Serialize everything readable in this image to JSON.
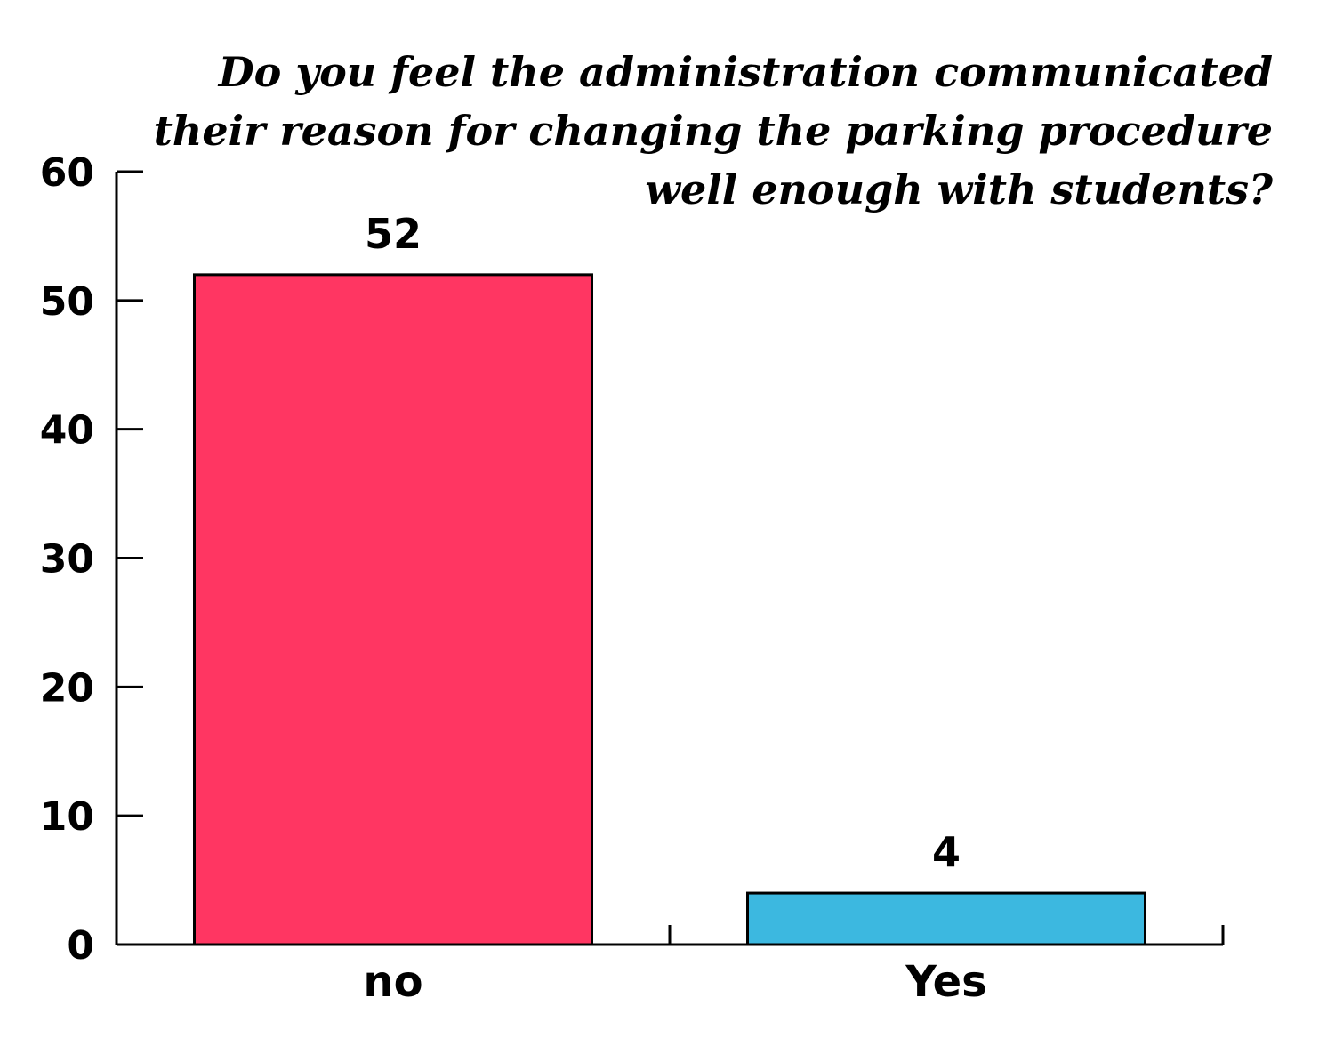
{
  "chart_data": {
    "type": "bar",
    "title_lines": [
      "Do you feel the administration communicated",
      "their reason for changing the parking procedure",
      "well enough with students?"
    ],
    "categories": [
      "no",
      "Yes"
    ],
    "values": [
      52,
      4
    ],
    "data_labels": [
      "52",
      "4"
    ],
    "bar_colors": [
      "#ff3662",
      "#3cb8e0"
    ],
    "ylim": [
      0,
      60
    ],
    "yticks": [
      0,
      10,
      20,
      30,
      40,
      50,
      60
    ],
    "xlabel": "",
    "ylabel": "",
    "grid": false,
    "legend": "none"
  }
}
